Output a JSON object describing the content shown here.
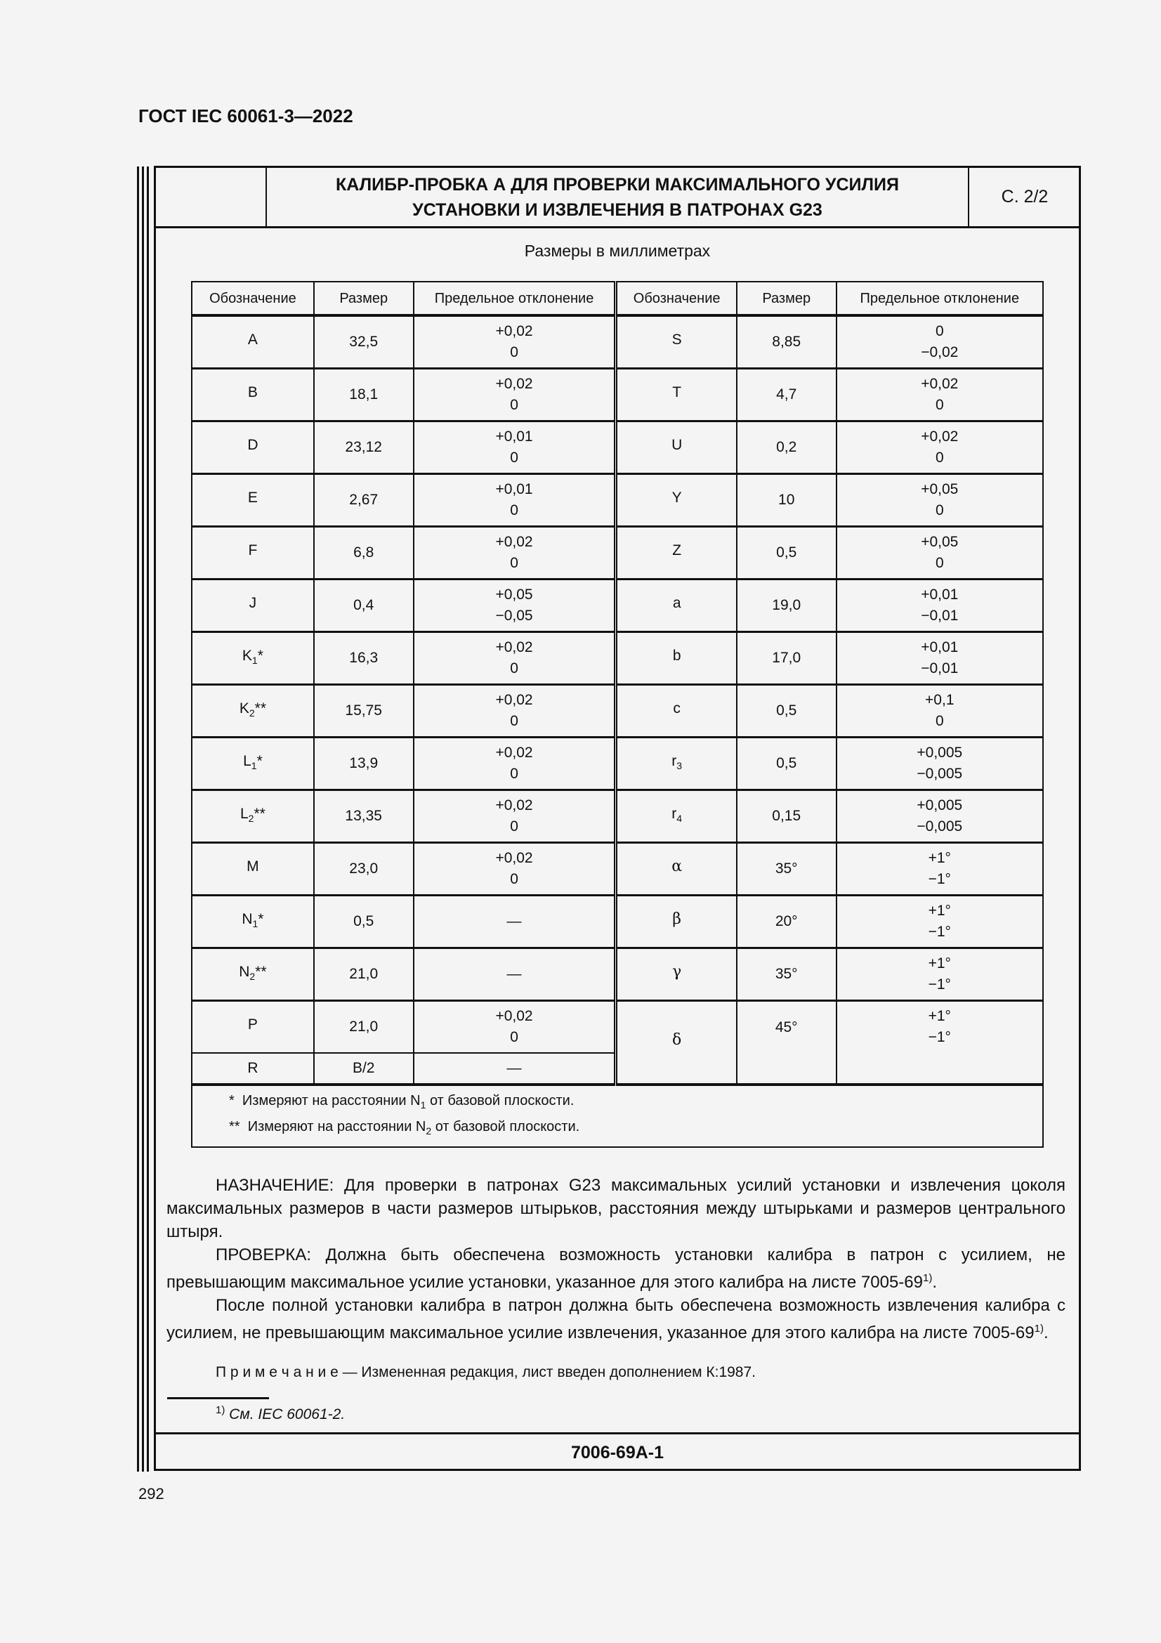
{
  "doc_code": "ГОСТ IEC 60061-3—2022",
  "sheet": {
    "title_line1": "КАЛИБР-ПРОБКА А ДЛЯ ПРОВЕРКИ МАКСИМАЛЬНОГО УСИЛИЯ",
    "title_line2": "УСТАНОВКИ И ИЗВЛЕЧЕНИЯ В ПАТРОНАХ G23",
    "page": "С. 2/2",
    "units": "Размеры в миллиметрах",
    "sheet_number": "7006-69А-1"
  },
  "table": {
    "headers": [
      "Обозначение",
      "Размер",
      "Предельное отклонение",
      "Обозначение",
      "Размер",
      "Предельное отклонение"
    ],
    "rows": [
      {
        "l": {
          "sym": "A",
          "sub": "",
          "suf": "",
          "size": "32,5",
          "up": "+0,02",
          "lo": "0"
        },
        "r": {
          "sym": "S",
          "sub": "",
          "size": "8,85",
          "up": "0",
          "lo": "−0,02"
        }
      },
      {
        "l": {
          "sym": "B",
          "sub": "",
          "suf": "",
          "size": "18,1",
          "up": "+0,02",
          "lo": "0"
        },
        "r": {
          "sym": "T",
          "sub": "",
          "size": "4,7",
          "up": "+0,02",
          "lo": "0"
        }
      },
      {
        "l": {
          "sym": "D",
          "sub": "",
          "suf": "",
          "size": "23,12",
          "up": "+0,01",
          "lo": "0"
        },
        "r": {
          "sym": "U",
          "sub": "",
          "size": "0,2",
          "up": "+0,02",
          "lo": "0"
        }
      },
      {
        "l": {
          "sym": "E",
          "sub": "",
          "suf": "",
          "size": "2,67",
          "up": "+0,01",
          "lo": "0"
        },
        "r": {
          "sym": "Y",
          "sub": "",
          "size": "10",
          "up": "+0,05",
          "lo": "0"
        }
      },
      {
        "l": {
          "sym": "F",
          "sub": "",
          "suf": "",
          "size": "6,8",
          "up": "+0,02",
          "lo": "0"
        },
        "r": {
          "sym": "Z",
          "sub": "",
          "size": "0,5",
          "up": "+0,05",
          "lo": "0"
        }
      },
      {
        "l": {
          "sym": "J",
          "sub": "",
          "suf": "",
          "size": "0,4",
          "up": "+0,05",
          "lo": "−0,05"
        },
        "r": {
          "sym": "a",
          "sub": "",
          "size": "19,0",
          "up": "+0,01",
          "lo": "−0,01"
        }
      },
      {
        "l": {
          "sym": "K",
          "sub": "1",
          "suf": "*",
          "size": "16,3",
          "up": "+0,02",
          "lo": "0"
        },
        "r": {
          "sym": "b",
          "sub": "",
          "size": "17,0",
          "up": "+0,01",
          "lo": "−0,01"
        }
      },
      {
        "l": {
          "sym": "K",
          "sub": "2",
          "suf": "**",
          "size": "15,75",
          "up": "+0,02",
          "lo": "0"
        },
        "r": {
          "sym": "c",
          "sub": "",
          "size": "0,5",
          "up": "+0,1",
          "lo": "0"
        }
      },
      {
        "l": {
          "sym": "L",
          "sub": "1",
          "suf": "*",
          "size": "13,9",
          "up": "+0,02",
          "lo": "0"
        },
        "r": {
          "sym": "r",
          "sub": "3",
          "size": "0,5",
          "up": "+0,005",
          "lo": "−0,005"
        }
      },
      {
        "l": {
          "sym": "L",
          "sub": "2",
          "suf": "**",
          "size": "13,35",
          "up": "+0,02",
          "lo": "0"
        },
        "r": {
          "sym": "r",
          "sub": "4",
          "size": "0,15",
          "up": "+0,005",
          "lo": "−0,005"
        }
      },
      {
        "l": {
          "sym": "M",
          "sub": "",
          "suf": "",
          "size": "23,0",
          "up": "+0,02",
          "lo": "0"
        },
        "r": {
          "sym": "α",
          "sub": "",
          "size": "35°",
          "up": "+1°",
          "lo": "−1°",
          "greek": true
        }
      },
      {
        "l": {
          "sym": "N",
          "sub": "1",
          "suf": "*",
          "size": "0,5",
          "up": "—",
          "lo": ""
        },
        "r": {
          "sym": "β",
          "sub": "",
          "size": "20°",
          "up": "+1°",
          "lo": "−1°",
          "greek": true
        }
      },
      {
        "l": {
          "sym": "N",
          "sub": "2",
          "suf": "**",
          "size": "21,0",
          "up": "—",
          "lo": ""
        },
        "r": {
          "sym": "γ",
          "sub": "",
          "size": "35°",
          "up": "+1°",
          "lo": "−1°",
          "greek": true
        }
      },
      {
        "l": {
          "sym": "P",
          "sub": "",
          "suf": "",
          "size": "21,0",
          "up": "+0,02",
          "lo": "0"
        },
        "r": {
          "sym": "δ",
          "sub": "",
          "size": "45°",
          "up": "+1°",
          "lo": "−1°",
          "greek": true
        }
      }
    ],
    "last_row": {
      "sym": "R",
      "size": "B/2",
      "dev": "—"
    },
    "footnotes": [
      {
        "mark": "*",
        "pre": "Измеряют на расстоянии N",
        "sub": "1",
        "post": " от базовой плоскости."
      },
      {
        "mark": "**",
        "pre": "Измеряют на расстоянии N",
        "sub": "2",
        "post": " от базовой плоскости."
      }
    ]
  },
  "text": {
    "purpose": "НАЗНАЧЕНИЕ: Для проверки в патронах G23 максимальных усилий установки и извлечения цоколя максимальных размеров в части размеров штырьков, расстояния между штырьками и размеров центрального штыря.",
    "check": "ПРОВЕРКА: Должна быть обеспечена возможность установки калибра в патрон с усилием, не превышающим максимальное усилие установки, указанное для этого калибра на листе 7005-69",
    "after": "После полной установки калибра в патрон должна быть обеспечена возможность извлечения калибра с усилием, не превышающим максимальное усилие извлечения, указанное для этого калибра на листе 7005-69",
    "fn_ref": "1)",
    "note_label": "П р и м е ч а н и е",
    "note_text": " — Измененная редакция, лист введен дополнением К:1987.",
    "footnote_mark": "1)",
    "footnote_text": " См. IEC 60061-2."
  },
  "page_number": "292"
}
